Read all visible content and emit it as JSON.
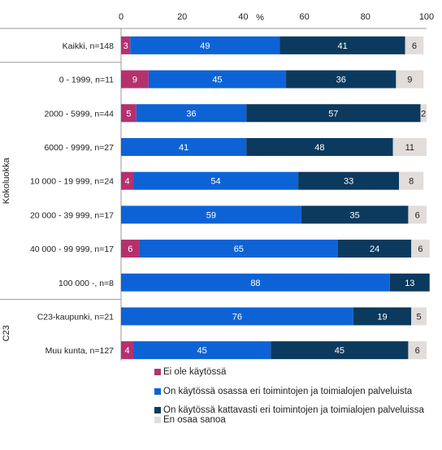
{
  "chart_data": {
    "type": "bar",
    "orientation": "horizontal",
    "stacked": true,
    "xlabel": "%",
    "xlim": [
      0,
      100
    ],
    "xticks": [
      0,
      20,
      40,
      60,
      80,
      100
    ],
    "categories": [
      "Kaikki, n=148",
      "0 - 1999, n=11",
      "2000 - 5999, n=44",
      "6000 - 9999, n=27",
      "10 000 - 19 999, n=24",
      "20 000 - 39 999, n=17",
      "40 000 - 99 999, n=17",
      "100 000 -, n=8",
      "C23-kaupunki, n=21",
      "Muu kunta, n=127"
    ],
    "groups": [
      {
        "label": "Kokoluokka",
        "from": 1,
        "to": 7
      },
      {
        "label": "C23",
        "from": 8,
        "to": 9
      }
    ],
    "series": [
      {
        "name": "Ei ole käytössä",
        "color": "#b5316e",
        "label_color": "#ffffff",
        "values": [
          3,
          9,
          5,
          0,
          4,
          0,
          6,
          0,
          0,
          4
        ]
      },
      {
        "name": "On käytössä osassa eri toimintojen ja toimialojen palveluista",
        "color": "#0d63d6",
        "label_color": "#ffffff",
        "values": [
          49,
          45,
          36,
          41,
          54,
          59,
          65,
          88,
          76,
          45
        ]
      },
      {
        "name": "On käytössä kattavasti eri toimintojen ja toimialojen palveluissa",
        "color": "#0b3a5e",
        "label_color": "#ffffff",
        "values": [
          41,
          36,
          57,
          48,
          33,
          35,
          24,
          13,
          19,
          45
        ]
      },
      {
        "name": "En osaa sanoa",
        "color": "#e2dcda",
        "label_color": "#222222",
        "values": [
          6,
          9,
          2,
          11,
          8,
          6,
          6,
          0,
          5,
          6
        ]
      }
    ],
    "legend_position": "bottom"
  }
}
